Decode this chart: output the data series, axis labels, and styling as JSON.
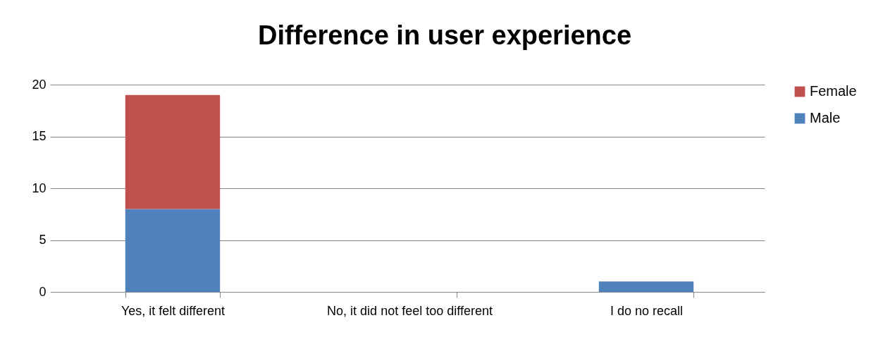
{
  "chart_data": {
    "type": "bar",
    "title": "Difference in user experience",
    "categories": [
      "Yes, it felt different",
      "No, it did not feel too different",
      "I do no recall"
    ],
    "series": [
      {
        "name": "Male",
        "color": "#4f81bd",
        "values": [
          8,
          0,
          1
        ]
      },
      {
        "name": "Female",
        "color": "#c0504d",
        "values": [
          11,
          0,
          0
        ]
      }
    ],
    "stacked": true,
    "ylim": [
      0,
      20
    ],
    "yticks": [
      0,
      5,
      10,
      15,
      20
    ],
    "grid": "y",
    "legend": "right"
  }
}
